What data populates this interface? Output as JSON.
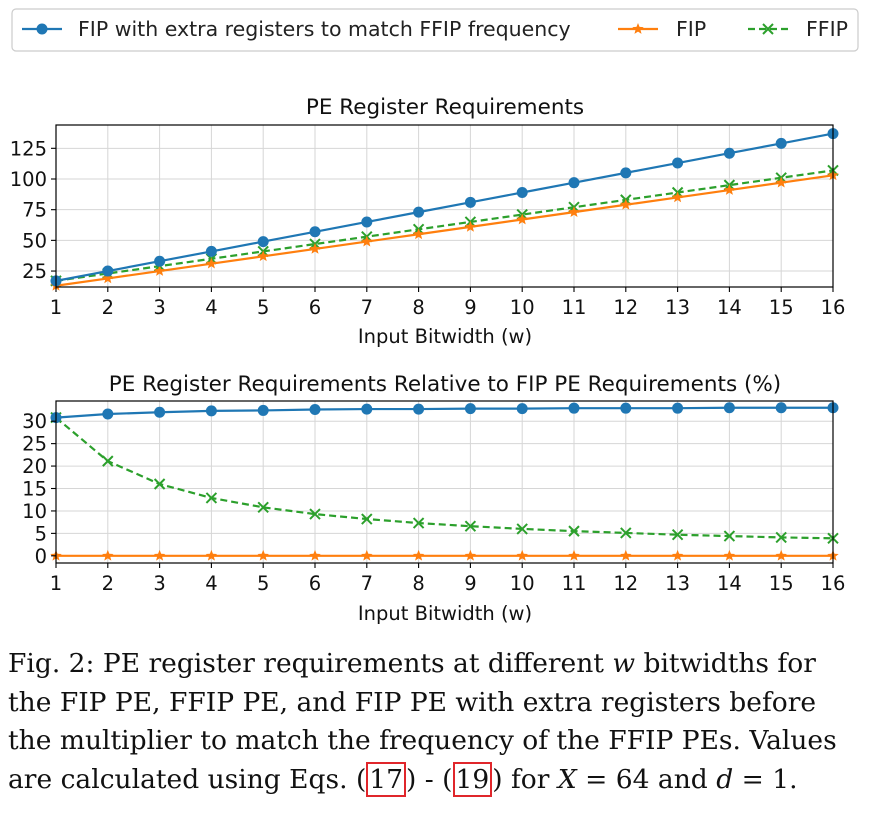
{
  "legend": {
    "items": [
      {
        "label": "FIP with extra registers to match FFIP frequency",
        "color": "#1f77b4",
        "marker": "circle",
        "dash": "solid"
      },
      {
        "label": "FIP",
        "color": "#ff7f0e",
        "marker": "star",
        "dash": "solid"
      },
      {
        "label": "FFIP",
        "color": "#2ca02c",
        "marker": "x",
        "dash": "dashed"
      }
    ]
  },
  "chart_data": [
    {
      "type": "line",
      "title": "PE Register Requirements",
      "xlabel": "Input Bitwidth (w)",
      "ylabel": "",
      "x": [
        1,
        2,
        3,
        4,
        5,
        6,
        7,
        8,
        9,
        10,
        11,
        12,
        13,
        14,
        15,
        16
      ],
      "xlim": [
        1,
        16
      ],
      "ylim": [
        12,
        144
      ],
      "yticks": [
        25,
        50,
        75,
        100,
        125
      ],
      "grid": true,
      "series": [
        {
          "name": "FIP with extra registers to match FFIP frequency",
          "color": "#1f77b4",
          "marker": "circle",
          "dash": "solid",
          "values": [
            17,
            25,
            33,
            41,
            49,
            57,
            65,
            73,
            81,
            89,
            97,
            105,
            113,
            121,
            129,
            137
          ]
        },
        {
          "name": "FIP",
          "color": "#ff7f0e",
          "marker": "star",
          "dash": "solid",
          "values": [
            13,
            19,
            25,
            31,
            37,
            43,
            49,
            55,
            61,
            67,
            73,
            79,
            85,
            91,
            97,
            103
          ]
        },
        {
          "name": "FFIP",
          "color": "#2ca02c",
          "marker": "x",
          "dash": "dashed",
          "values": [
            17,
            23,
            29,
            35,
            41,
            47,
            53,
            59,
            65,
            71,
            77,
            83,
            89,
            95,
            101,
            107
          ]
        }
      ]
    },
    {
      "type": "line",
      "title": "PE Register Requirements Relative to FIP PE Requirements (%)",
      "xlabel": "Input Bitwidth (w)",
      "ylabel": "",
      "x": [
        1,
        2,
        3,
        4,
        5,
        6,
        7,
        8,
        9,
        10,
        11,
        12,
        13,
        14,
        15,
        16
      ],
      "xlim": [
        1,
        16
      ],
      "ylim": [
        -1.6,
        34.5
      ],
      "yticks": [
        0,
        5,
        10,
        15,
        20,
        25,
        30
      ],
      "grid": true,
      "series": [
        {
          "name": "FIP with extra registers to match FFIP frequency",
          "color": "#1f77b4",
          "marker": "circle",
          "dash": "solid",
          "values": [
            30.8,
            31.6,
            32.0,
            32.3,
            32.4,
            32.6,
            32.7,
            32.7,
            32.8,
            32.8,
            32.9,
            32.9,
            32.9,
            33.0,
            33.0,
            33.0
          ]
        },
        {
          "name": "FIP",
          "color": "#ff7f0e",
          "marker": "star",
          "dash": "solid",
          "values": [
            0,
            0,
            0,
            0,
            0,
            0,
            0,
            0,
            0,
            0,
            0,
            0,
            0,
            0,
            0,
            0
          ]
        },
        {
          "name": "FFIP",
          "color": "#2ca02c",
          "marker": "x",
          "dash": "dashed",
          "values": [
            30.8,
            21.1,
            16.0,
            12.9,
            10.8,
            9.3,
            8.2,
            7.3,
            6.6,
            6.0,
            5.5,
            5.1,
            4.7,
            4.4,
            4.1,
            3.9
          ]
        }
      ]
    }
  ],
  "caption": {
    "line1_a": "Fig. 2: PE register requirements at different ",
    "line1_w": "w",
    "line1_b": " bitwidths for",
    "line2": "the FIP PE, FFIP PE, and FIP PE with extra registers before",
    "line3": "the multiplier to match the frequency of the FFIP PEs. Values",
    "line4_a": "are calculated using Eqs. (",
    "ref1": "17",
    "line4_b": ") - (",
    "ref2": "19",
    "line4_c": ") for ",
    "line4_X": "X",
    "line4_d": " = 64 and ",
    "line4_dvar": "d",
    "line4_e": " = 1."
  }
}
